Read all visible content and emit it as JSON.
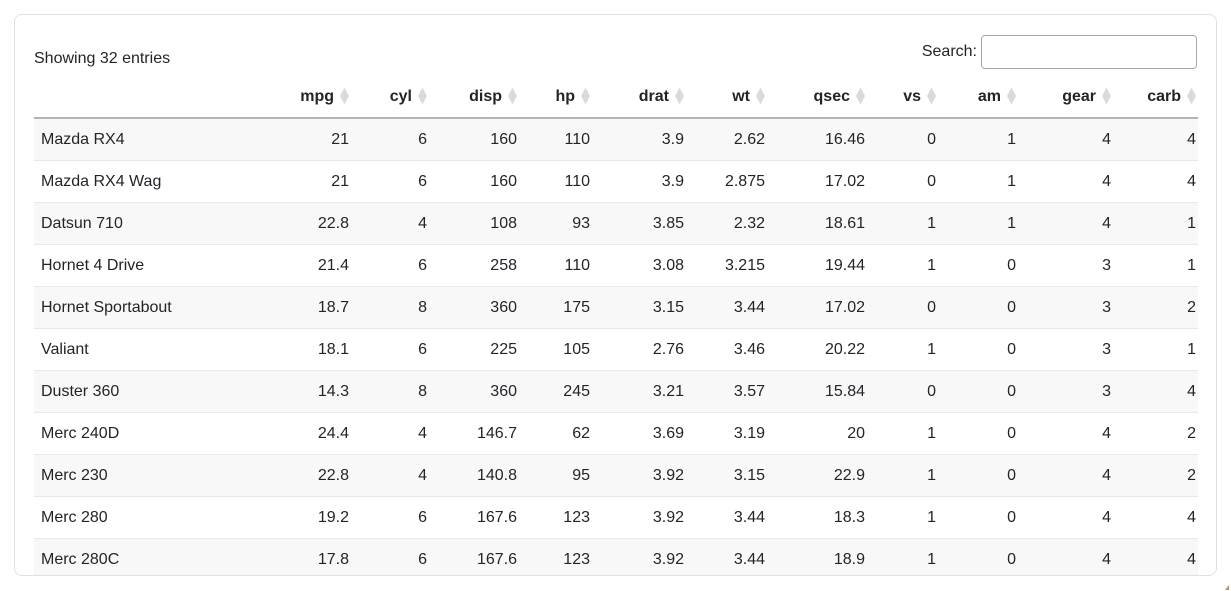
{
  "summary": {
    "text": "Showing 32 entries"
  },
  "search": {
    "label": "Search:",
    "value": "",
    "placeholder": ""
  },
  "table": {
    "columns": [
      {
        "key": "name",
        "label": "",
        "sortable": true
      },
      {
        "key": "mpg",
        "label": "mpg",
        "sortable": true
      },
      {
        "key": "cyl",
        "label": "cyl",
        "sortable": true
      },
      {
        "key": "disp",
        "label": "disp",
        "sortable": true
      },
      {
        "key": "hp",
        "label": "hp",
        "sortable": true
      },
      {
        "key": "drat",
        "label": "drat",
        "sortable": true
      },
      {
        "key": "wt",
        "label": "wt",
        "sortable": true
      },
      {
        "key": "qsec",
        "label": "qsec",
        "sortable": true
      },
      {
        "key": "vs",
        "label": "vs",
        "sortable": true
      },
      {
        "key": "am",
        "label": "am",
        "sortable": true
      },
      {
        "key": "gear",
        "label": "gear",
        "sortable": true
      },
      {
        "key": "carb",
        "label": "carb",
        "sortable": true
      }
    ],
    "rows": [
      {
        "name": "Mazda RX4",
        "values": [
          "21",
          "6",
          "160",
          "110",
          "3.9",
          "2.62",
          "16.46",
          "0",
          "1",
          "4",
          "4"
        ]
      },
      {
        "name": "Mazda RX4 Wag",
        "values": [
          "21",
          "6",
          "160",
          "110",
          "3.9",
          "2.875",
          "17.02",
          "0",
          "1",
          "4",
          "4"
        ]
      },
      {
        "name": "Datsun 710",
        "values": [
          "22.8",
          "4",
          "108",
          "93",
          "3.85",
          "2.32",
          "18.61",
          "1",
          "1",
          "4",
          "1"
        ]
      },
      {
        "name": "Hornet 4 Drive",
        "values": [
          "21.4",
          "6",
          "258",
          "110",
          "3.08",
          "3.215",
          "19.44",
          "1",
          "0",
          "3",
          "1"
        ]
      },
      {
        "name": "Hornet Sportabout",
        "values": [
          "18.7",
          "8",
          "360",
          "175",
          "3.15",
          "3.44",
          "17.02",
          "0",
          "0",
          "3",
          "2"
        ]
      },
      {
        "name": "Valiant",
        "values": [
          "18.1",
          "6",
          "225",
          "105",
          "2.76",
          "3.46",
          "20.22",
          "1",
          "0",
          "3",
          "1"
        ]
      },
      {
        "name": "Duster 360",
        "values": [
          "14.3",
          "8",
          "360",
          "245",
          "3.21",
          "3.57",
          "15.84",
          "0",
          "0",
          "3",
          "4"
        ]
      },
      {
        "name": "Merc 240D",
        "values": [
          "24.4",
          "4",
          "146.7",
          "62",
          "3.69",
          "3.19",
          "20",
          "1",
          "0",
          "4",
          "2"
        ]
      },
      {
        "name": "Merc 230",
        "values": [
          "22.8",
          "4",
          "140.8",
          "95",
          "3.92",
          "3.15",
          "22.9",
          "1",
          "0",
          "4",
          "2"
        ]
      },
      {
        "name": "Merc 280",
        "values": [
          "19.2",
          "6",
          "167.6",
          "123",
          "3.92",
          "3.44",
          "18.3",
          "1",
          "0",
          "4",
          "4"
        ]
      },
      {
        "name": "Merc 280C",
        "values": [
          "17.8",
          "6",
          "167.6",
          "123",
          "3.92",
          "3.44",
          "18.9",
          "1",
          "0",
          "4",
          "4"
        ]
      }
    ]
  },
  "icons": {
    "sort": "sort-diamond-icon"
  },
  "colors": {
    "text": "#212529",
    "card_border": "#dee2e6",
    "header_border": "#b5b5b5",
    "row_border": "#e8e8e8",
    "stripe": "#f8f8f8",
    "sort_icon": "#dadada",
    "input_border": "#a9a9a9"
  }
}
